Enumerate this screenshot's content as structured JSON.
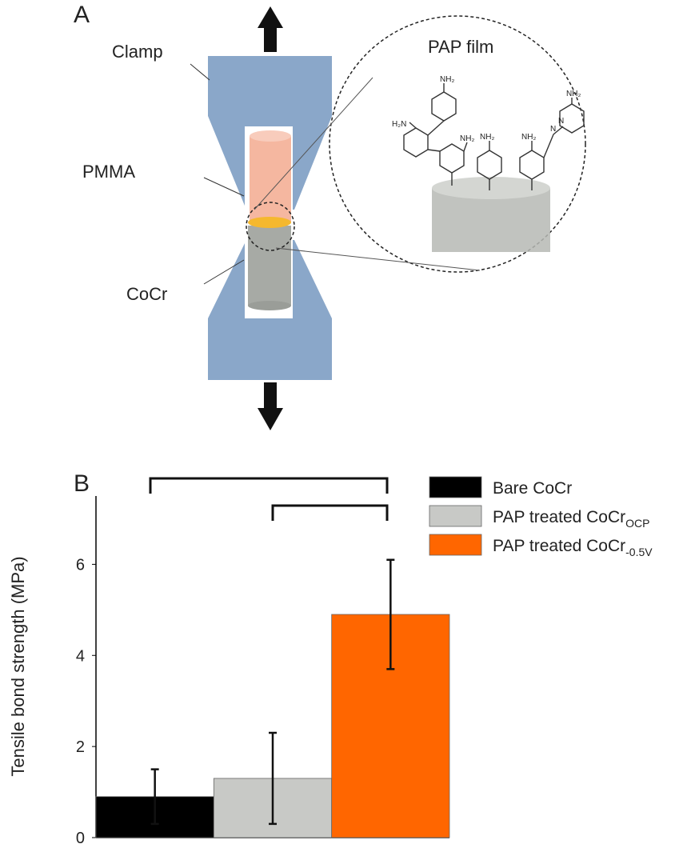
{
  "panel_a": {
    "label": "A",
    "clamp": "Clamp",
    "pmma": "PMMA",
    "cocr": "CoCr",
    "film": "PAP film",
    "chem_labels": [
      "NH₂",
      "H₂N",
      "NH₂",
      "NH₂",
      "NH₂",
      "N",
      "N",
      "NH₂"
    ]
  },
  "chart_data": {
    "type": "bar",
    "panel_label": "B",
    "y_label": "Tensile bond strength (MPa)",
    "ylim": [
      0,
      7.5
    ],
    "yticks": [
      0,
      2,
      4,
      6
    ],
    "series": [
      {
        "name": "Bare CoCr",
        "color": "#000000",
        "values": [
          0.9
        ],
        "errors": [
          0.6
        ]
      },
      {
        "name": "PAP treated CoCr",
        "sub": "OCP",
        "color": "#c8c9c6",
        "values": [
          1.3
        ],
        "errors": [
          1.0
        ]
      },
      {
        "name": "PAP treated CoCr",
        "sub": "-0.5V",
        "color": "#ff6600",
        "values": [
          4.9
        ],
        "errors": [
          1.2
        ]
      }
    ]
  }
}
